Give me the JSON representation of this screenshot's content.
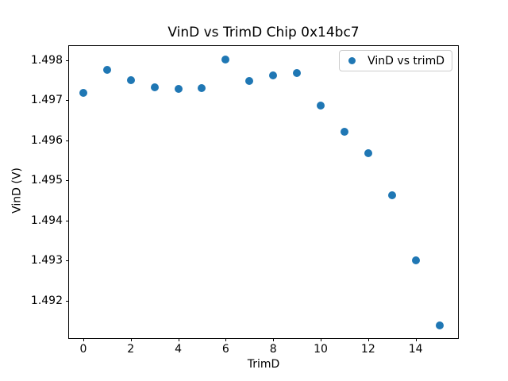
{
  "chart_data": {
    "type": "scatter",
    "title": "VinD vs TrimD Chip 0x14bc7",
    "xlabel": "TrimD",
    "ylabel": "VinD (V)",
    "legend": {
      "label": "VinD vs trimD",
      "position": "upper right"
    },
    "marker_color": "#1f77b4",
    "grid": false,
    "x": [
      0,
      1,
      2,
      3,
      4,
      5,
      6,
      7,
      8,
      9,
      10,
      11,
      12,
      13,
      14,
      15
    ],
    "y": [
      1.49719,
      1.49776,
      1.49749,
      1.49733,
      1.49728,
      1.49731,
      1.49801,
      1.49748,
      1.49761,
      1.49768,
      1.49686,
      1.49622,
      1.49568,
      1.49464,
      1.49301,
      1.49139
    ],
    "xlim": [
      -0.6,
      15.85
    ],
    "ylim": [
      1.49103,
      1.49835
    ],
    "xticks": [
      0,
      2,
      4,
      6,
      8,
      10,
      12,
      14
    ],
    "yticks": [
      1.492,
      1.493,
      1.494,
      1.495,
      1.496,
      1.497,
      1.498
    ]
  }
}
